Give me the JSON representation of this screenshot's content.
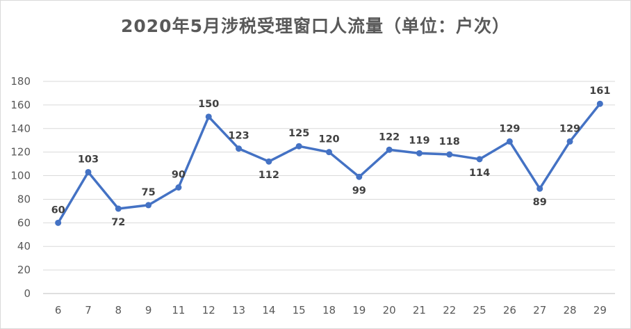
{
  "chart_data": {
    "type": "line",
    "title": "2020年5月涉税受理窗口人流量（单位：户次）",
    "categories": [
      "6",
      "7",
      "8",
      "9",
      "11",
      "12",
      "13",
      "14",
      "15",
      "18",
      "19",
      "20",
      "21",
      "22",
      "25",
      "26",
      "27",
      "28",
      "29"
    ],
    "series": [
      {
        "values": [
          60,
          103,
          72,
          75,
          90,
          150,
          123,
          112,
          125,
          120,
          99,
          122,
          119,
          118,
          114,
          129,
          89,
          129,
          161
        ]
      }
    ],
    "ylim": [
      0,
      180
    ],
    "yticks": [
      0,
      20,
      40,
      60,
      80,
      100,
      120,
      140,
      160,
      180
    ],
    "xlabel": "",
    "ylabel": "",
    "grid": "horizontal",
    "legend": "none",
    "line_color": "#4472c4",
    "marker_color": "#4472c4"
  }
}
